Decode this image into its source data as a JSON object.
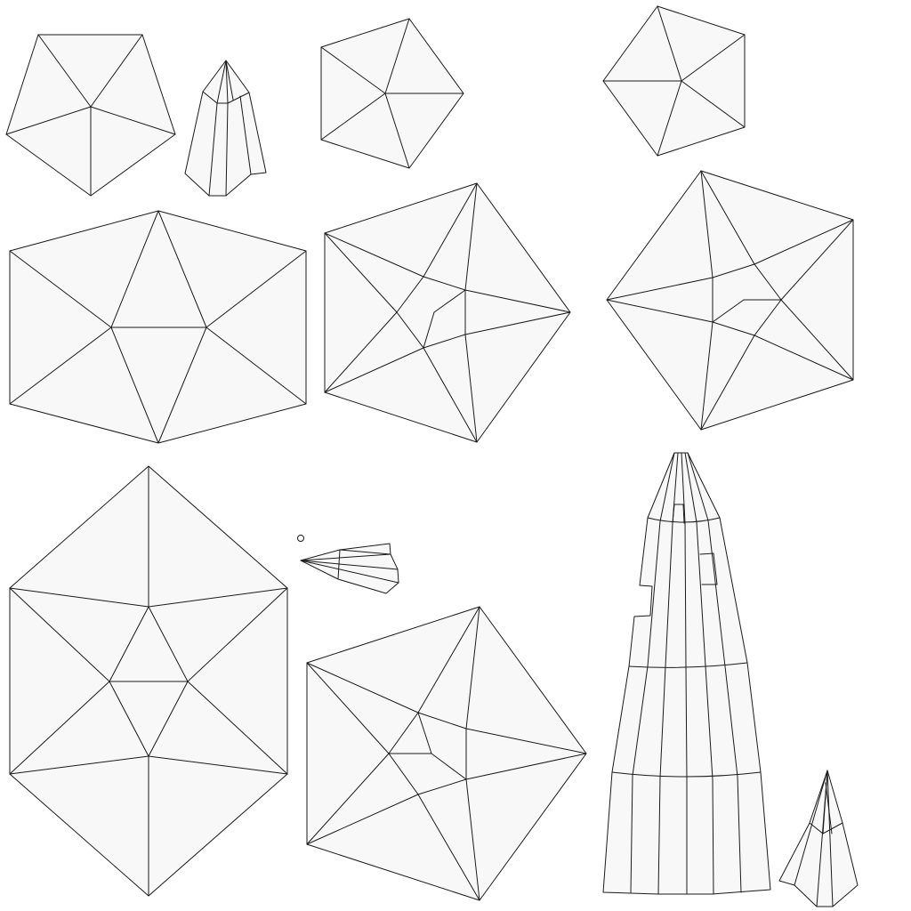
{
  "diagram": {
    "kind": "uv-layout",
    "shells": [
      {
        "id": "pentagon-small-a"
      },
      {
        "id": "spire-small-top"
      },
      {
        "id": "pentagon-small-b"
      },
      {
        "id": "pentagon-small-c"
      },
      {
        "id": "hexagon-wide"
      },
      {
        "id": "pentagon-star-large-a"
      },
      {
        "id": "pentagon-star-large-b"
      },
      {
        "id": "hexagon-tall"
      },
      {
        "id": "fan-small"
      },
      {
        "id": "pentagon-star-large-c"
      },
      {
        "id": "tower-strip"
      },
      {
        "id": "spire-small-bottom"
      }
    ],
    "colors": {
      "face": "#f8f8f8",
      "edge": "#1a1a1a",
      "background": "#ffffff"
    }
  }
}
